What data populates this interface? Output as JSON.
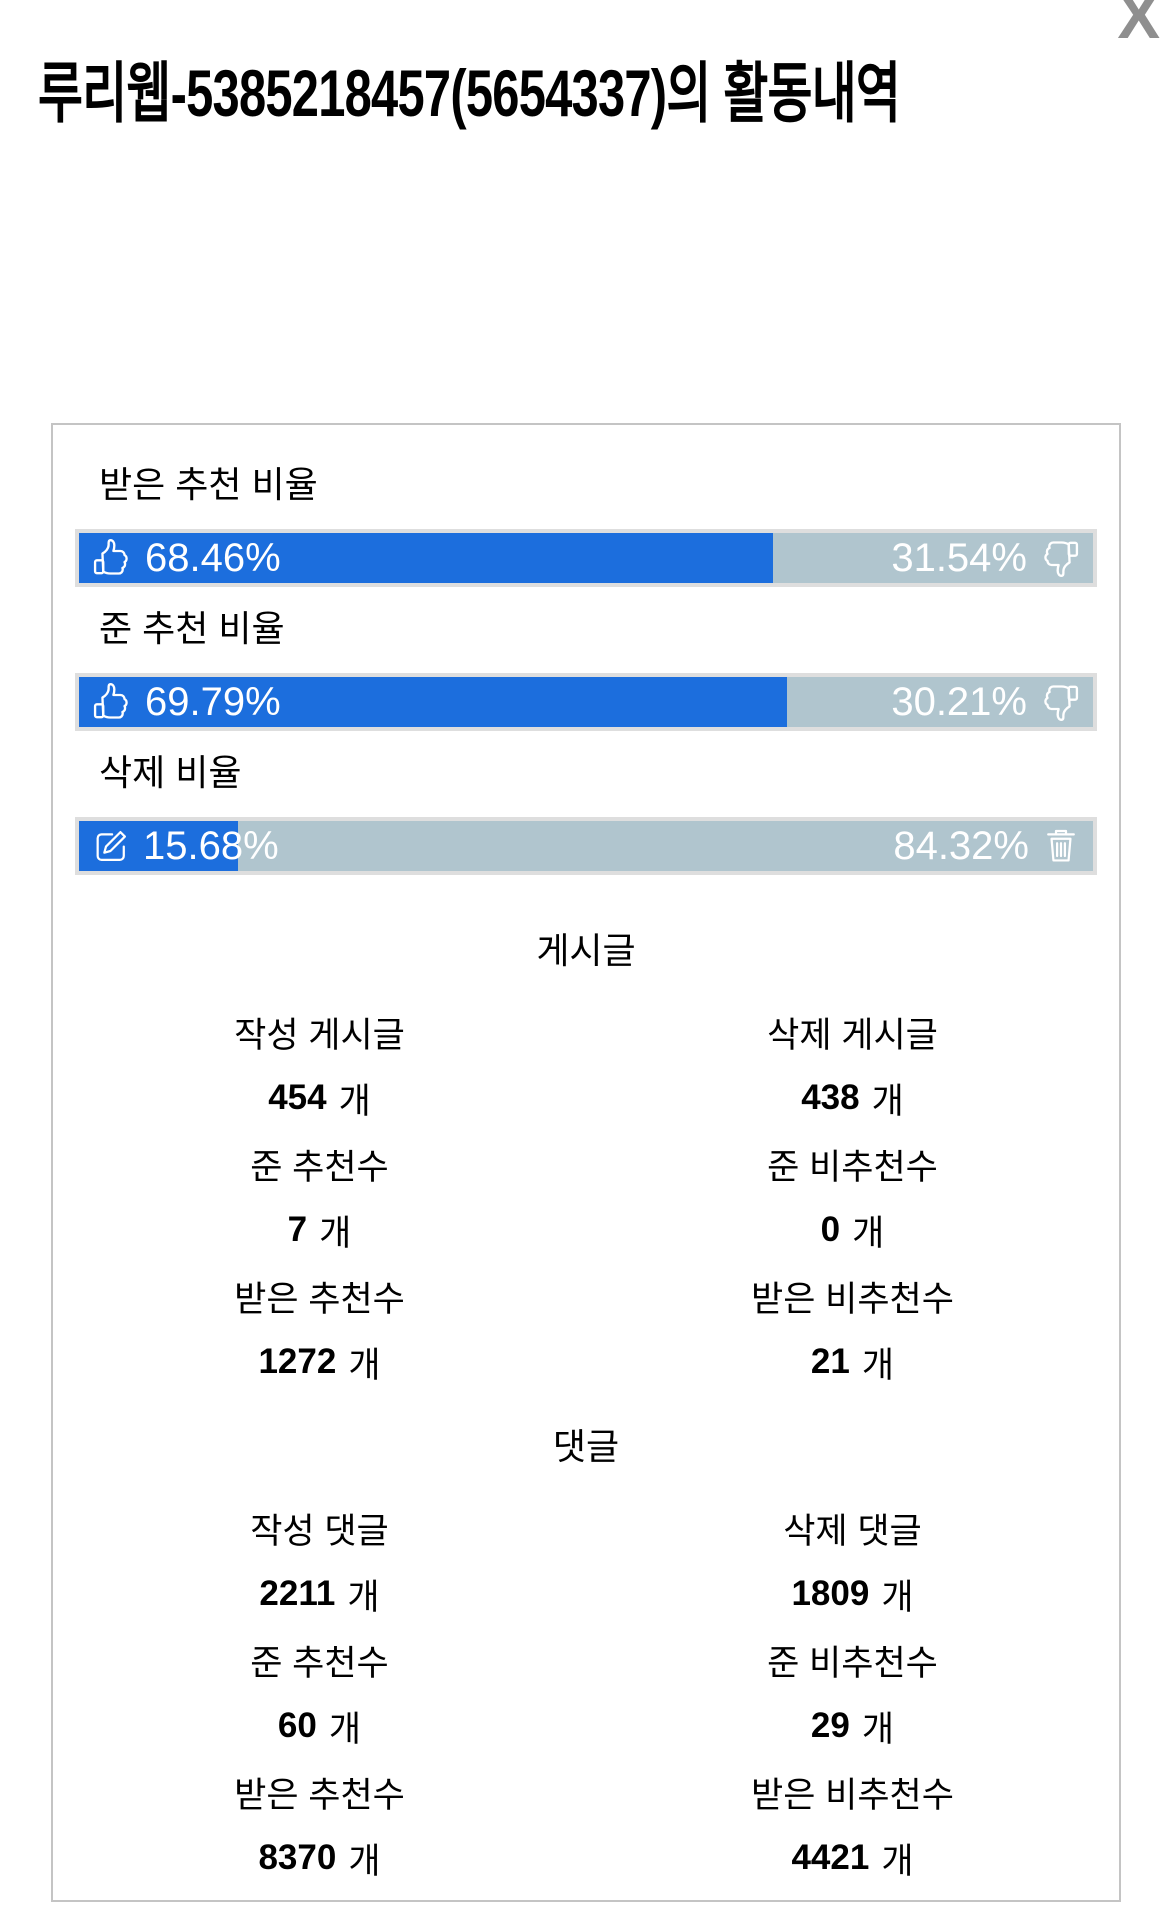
{
  "page": {
    "title": "루리웹-5385218457(5654337)의 활동내역",
    "close_label": "X"
  },
  "colors": {
    "bar-blue": "#1c6edd",
    "bar-gray": "#b0c5ce",
    "bar-frame": "#dedede",
    "panel-border": "#c4c4c4"
  },
  "bars": [
    {
      "label": "받은 추천 비율",
      "left_pct": "68.46%",
      "right_pct": "31.54%",
      "left_value": 68.46,
      "left_icon": "thumbs-up-icon",
      "right_icon": "thumbs-down-icon"
    },
    {
      "label": "준 추천 비율",
      "left_pct": "69.79%",
      "right_pct": "30.21%",
      "left_value": 69.79,
      "left_icon": "thumbs-up-icon",
      "right_icon": "thumbs-down-icon"
    },
    {
      "label": "삭제 비율",
      "left_pct": "15.68%",
      "right_pct": "84.32%",
      "left_value": 15.68,
      "left_icon": "edit-icon",
      "right_icon": "trash-icon"
    }
  ],
  "sections": [
    {
      "title": "게시글",
      "stats": [
        {
          "label": "작성 게시글",
          "value": "454",
          "unit": "개"
        },
        {
          "label": "삭제 게시글",
          "value": "438",
          "unit": "개"
        },
        {
          "label": "준 추천수",
          "value": "7",
          "unit": "개"
        },
        {
          "label": "준 비추천수",
          "value": "0",
          "unit": "개"
        },
        {
          "label": "받은 추천수",
          "value": "1272",
          "unit": "개"
        },
        {
          "label": "받은 비추천수",
          "value": "21",
          "unit": "개"
        }
      ]
    },
    {
      "title": "댓글",
      "stats": [
        {
          "label": "작성 댓글",
          "value": "2211",
          "unit": "개"
        },
        {
          "label": "삭제 댓글",
          "value": "1809",
          "unit": "개"
        },
        {
          "label": "준 추천수",
          "value": "60",
          "unit": "개"
        },
        {
          "label": "준 비추천수",
          "value": "29",
          "unit": "개"
        },
        {
          "label": "받은 추천수",
          "value": "8370",
          "unit": "개"
        },
        {
          "label": "받은 비추천수",
          "value": "4421",
          "unit": "개"
        }
      ]
    }
  ]
}
